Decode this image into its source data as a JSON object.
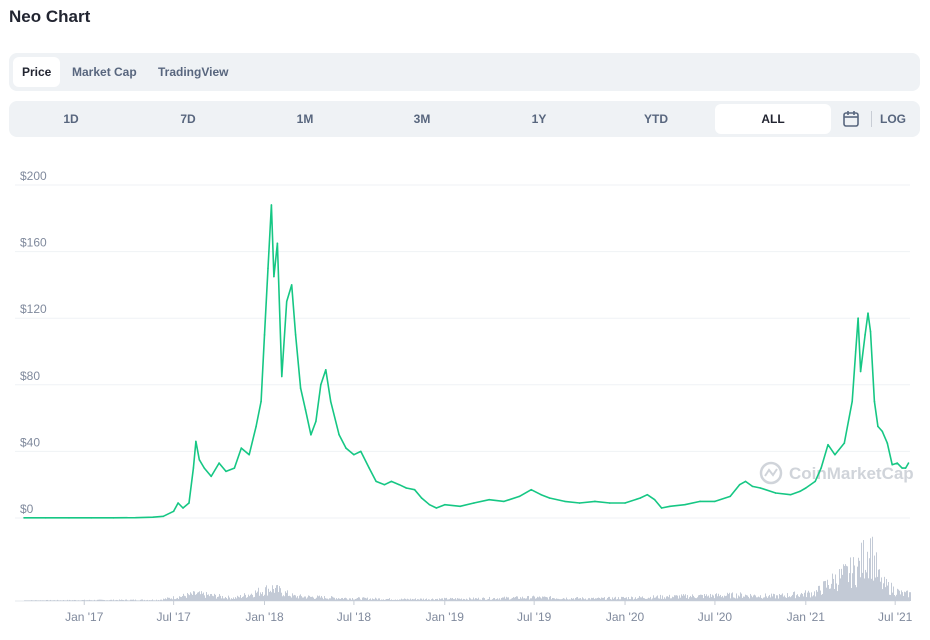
{
  "title": "Neo Chart",
  "tabs": [
    {
      "label": "Price",
      "active": true
    },
    {
      "label": "Market Cap",
      "active": false
    },
    {
      "label": "TradingView",
      "active": false
    }
  ],
  "ranges": [
    {
      "label": "1D",
      "active": false
    },
    {
      "label": "7D",
      "active": false
    },
    {
      "label": "1M",
      "active": false
    },
    {
      "label": "3M",
      "active": false
    },
    {
      "label": "1Y",
      "active": false
    },
    {
      "label": "YTD",
      "active": false
    },
    {
      "label": "ALL",
      "active": true
    }
  ],
  "calendar_icon": "calendar-icon",
  "log_label": "LOG",
  "watermark": "CoinMarketCap",
  "colors": {
    "line": "#16c784",
    "volume": "#c3cad6",
    "grid": "#eff2f5",
    "axis_text": "#808a9d",
    "tab_bg": "#eff2f5"
  },
  "chart_data": {
    "type": "line",
    "series": [
      {
        "values": [
          [
            "2016-09-01",
            0.1
          ],
          [
            "2016-10-15",
            0.1
          ],
          [
            "2016-12-01",
            0.1
          ],
          [
            "2017-01-15",
            0.1
          ],
          [
            "2017-03-01",
            0.1
          ],
          [
            "2017-04-15",
            0.2
          ],
          [
            "2017-05-20",
            0.5
          ],
          [
            "2017-06-10",
            1
          ],
          [
            "2017-07-01",
            4
          ],
          [
            "2017-07-10",
            9
          ],
          [
            "2017-07-20",
            6
          ],
          [
            "2017-08-01",
            9
          ],
          [
            "2017-08-10",
            30
          ],
          [
            "2017-08-15",
            46
          ],
          [
            "2017-08-22",
            35
          ],
          [
            "2017-09-01",
            30
          ],
          [
            "2017-09-15",
            25
          ],
          [
            "2017-10-01",
            33
          ],
          [
            "2017-10-15",
            28
          ],
          [
            "2017-11-01",
            30
          ],
          [
            "2017-11-15",
            42
          ],
          [
            "2017-12-01",
            38
          ],
          [
            "2017-12-15",
            55
          ],
          [
            "2017-12-25",
            70
          ],
          [
            "2018-01-01",
            110
          ],
          [
            "2018-01-08",
            150
          ],
          [
            "2018-01-15",
            188
          ],
          [
            "2018-01-20",
            145
          ],
          [
            "2018-01-27",
            165
          ],
          [
            "2018-02-05",
            85
          ],
          [
            "2018-02-15",
            130
          ],
          [
            "2018-02-25",
            140
          ],
          [
            "2018-03-05",
            110
          ],
          [
            "2018-03-15",
            78
          ],
          [
            "2018-03-25",
            65
          ],
          [
            "2018-04-05",
            50
          ],
          [
            "2018-04-15",
            58
          ],
          [
            "2018-04-25",
            80
          ],
          [
            "2018-05-05",
            89
          ],
          [
            "2018-05-15",
            70
          ],
          [
            "2018-06-01",
            50
          ],
          [
            "2018-06-15",
            42
          ],
          [
            "2018-07-01",
            38
          ],
          [
            "2018-07-15",
            40
          ],
          [
            "2018-08-01",
            30
          ],
          [
            "2018-08-15",
            22
          ],
          [
            "2018-09-01",
            20
          ],
          [
            "2018-09-15",
            22
          ],
          [
            "2018-10-01",
            20
          ],
          [
            "2018-10-15",
            18
          ],
          [
            "2018-11-01",
            17
          ],
          [
            "2018-11-15",
            12
          ],
          [
            "2018-12-01",
            8
          ],
          [
            "2018-12-15",
            6
          ],
          [
            "2019-01-01",
            8
          ],
          [
            "2019-02-01",
            7
          ],
          [
            "2019-03-01",
            9
          ],
          [
            "2019-04-01",
            11
          ],
          [
            "2019-05-01",
            10
          ],
          [
            "2019-06-01",
            13
          ],
          [
            "2019-06-25",
            17
          ],
          [
            "2019-07-15",
            14
          ],
          [
            "2019-08-01",
            12
          ],
          [
            "2019-09-01",
            10
          ],
          [
            "2019-10-01",
            9
          ],
          [
            "2019-11-01",
            10
          ],
          [
            "2019-12-01",
            9
          ],
          [
            "2020-01-01",
            9
          ],
          [
            "2020-02-01",
            12
          ],
          [
            "2020-02-15",
            14
          ],
          [
            "2020-03-01",
            11
          ],
          [
            "2020-03-15",
            6
          ],
          [
            "2020-04-01",
            7
          ],
          [
            "2020-05-01",
            8
          ],
          [
            "2020-06-01",
            10
          ],
          [
            "2020-07-01",
            10
          ],
          [
            "2020-08-01",
            13
          ],
          [
            "2020-08-20",
            20
          ],
          [
            "2020-09-01",
            22
          ],
          [
            "2020-09-15",
            19
          ],
          [
            "2020-10-01",
            18
          ],
          [
            "2020-11-01",
            15
          ],
          [
            "2020-12-01",
            14
          ],
          [
            "2020-12-20",
            16
          ],
          [
            "2021-01-01",
            18
          ],
          [
            "2021-01-20",
            22
          ],
          [
            "2021-02-01",
            30
          ],
          [
            "2021-02-15",
            44
          ],
          [
            "2021-03-01",
            38
          ],
          [
            "2021-03-20",
            45
          ],
          [
            "2021-04-05",
            70
          ],
          [
            "2021-04-12",
            100
          ],
          [
            "2021-04-17",
            120
          ],
          [
            "2021-04-22",
            88
          ],
          [
            "2021-05-01",
            110
          ],
          [
            "2021-05-07",
            123
          ],
          [
            "2021-05-12",
            112
          ],
          [
            "2021-05-20",
            70
          ],
          [
            "2021-05-27",
            55
          ],
          [
            "2021-06-05",
            52
          ],
          [
            "2021-06-15",
            45
          ],
          [
            "2021-06-25",
            32
          ],
          [
            "2021-07-05",
            33
          ],
          [
            "2021-07-15",
            30
          ],
          [
            "2021-07-22",
            30
          ],
          [
            "2021-07-28",
            33
          ]
        ]
      }
    ],
    "volume": [
      [
        "2016-09-01",
        0.01
      ],
      [
        "2017-06-01",
        0.02
      ],
      [
        "2017-08-15",
        0.12
      ],
      [
        "2017-11-01",
        0.05
      ],
      [
        "2018-01-15",
        0.22
      ],
      [
        "2018-03-01",
        0.08
      ],
      [
        "2018-06-01",
        0.05
      ],
      [
        "2018-10-01",
        0.03
      ],
      [
        "2019-03-01",
        0.04
      ],
      [
        "2019-07-01",
        0.06
      ],
      [
        "2019-11-01",
        0.04
      ],
      [
        "2020-03-15",
        0.07
      ],
      [
        "2020-08-20",
        0.1
      ],
      [
        "2020-11-01",
        0.08
      ],
      [
        "2021-01-20",
        0.14
      ],
      [
        "2021-02-20",
        0.32
      ],
      [
        "2021-04-15",
        0.55
      ],
      [
        "2021-05-10",
        0.92
      ],
      [
        "2021-06-01",
        0.3
      ],
      [
        "2021-07-15",
        0.12
      ]
    ],
    "y_ticks": [
      "$0",
      "$40",
      "$80",
      "$120",
      "$160",
      "$200"
    ],
    "x_ticks": [
      "Jan '17",
      "Jul '17",
      "Jan '18",
      "Jul '18",
      "Jan '19",
      "Jul '19",
      "Jan '20",
      "Jul '20",
      "Jan '21",
      "Jul '21"
    ],
    "ylim": [
      0,
      200
    ],
    "xlim": [
      "2016-09-01",
      "2021-07-31"
    ],
    "grid": true,
    "legend": "none"
  }
}
